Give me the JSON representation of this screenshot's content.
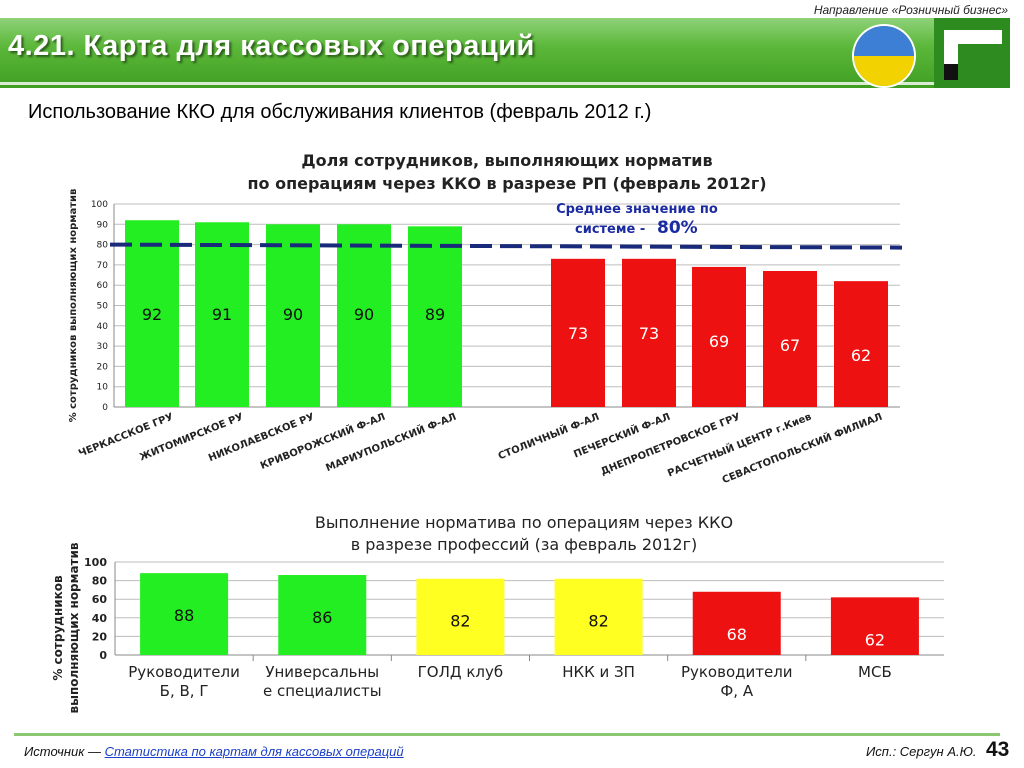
{
  "header": {
    "top_note": "Направление «Розничный бизнес»",
    "title": "4.21. Карта для кассовых операций",
    "subtitle": "Использование ККО для обслуживания клиентов (февраль 2012 г.)"
  },
  "footer": {
    "source_prefix": "Источник — ",
    "source_link": "Статистика по картам для кассовых операций",
    "author": "Исп.: Сергун А.Ю.",
    "page": "43"
  },
  "colors": {
    "green": "#22ee22",
    "red": "#ee1111",
    "yellow": "#ffff22",
    "avg_line": "#1a2a7a",
    "avg_label": "#1a2aa0"
  },
  "chart_data": [
    {
      "type": "bar",
      "title": "Доля сотрудников, выполняющих норматив",
      "subtitle": "по операциям через ККО  в разрезе РП (февраль 2012г)",
      "ylabel": "% сотрудников выполняющих норматив",
      "ylim": [
        0,
        100
      ],
      "yticks": [
        0,
        10,
        20,
        30,
        40,
        50,
        60,
        70,
        80,
        90,
        100
      ],
      "grid": true,
      "categories": [
        "ЧЕРКАССКОЕ ГРУ",
        "ЖИТОМИРСКОЕ РУ",
        "НИКОЛАЕВСКОЕ РУ",
        "КРИВОРОЖСКИЙ Ф-АЛ",
        "МАРИУПОЛЬСКИЙ Ф-АЛ",
        "СТОЛИЧНЫЙ Ф-АЛ",
        "ПЕЧЕРСКИЙ Ф-АЛ",
        "ДНЕПРОПЕТРОВСКОЕ ГРУ",
        "РАСЧЕТНЫЙ ЦЕНТР г.Киев",
        "СЕВАСТОПОЛЬСКИЙ ФИЛИАЛ"
      ],
      "values": [
        92,
        91,
        90,
        90,
        89,
        73,
        73,
        69,
        67,
        62
      ],
      "bar_colors": [
        "green",
        "green",
        "green",
        "green",
        "green",
        "red",
        "red",
        "red",
        "red",
        "red"
      ],
      "average": {
        "value": 80,
        "label_line1": "Среднее значение  по",
        "label_line2": "системе - ",
        "label_value": "80%"
      }
    },
    {
      "type": "bar",
      "title": "Выполнение норматива по операциям через ККО",
      "subtitle": "в разрезе профессий (за февраль 2012г)",
      "ylabel_line1": "% сотрудников",
      "ylabel_line2": "выполняющих норматив",
      "ylim": [
        0,
        100
      ],
      "yticks": [
        0,
        20,
        40,
        60,
        80,
        100
      ],
      "grid": true,
      "categories": [
        [
          "Руководители",
          "Б, В, Г"
        ],
        [
          "Универсальны",
          "е специалисты"
        ],
        [
          "ГОЛД клуб"
        ],
        [
          "НКК и ЗП"
        ],
        [
          "Руководители",
          "Ф, А"
        ],
        [
          "МСБ"
        ]
      ],
      "values": [
        88,
        86,
        82,
        82,
        68,
        62
      ],
      "bar_colors": [
        "green",
        "green",
        "yellow",
        "yellow",
        "red",
        "red"
      ]
    }
  ]
}
